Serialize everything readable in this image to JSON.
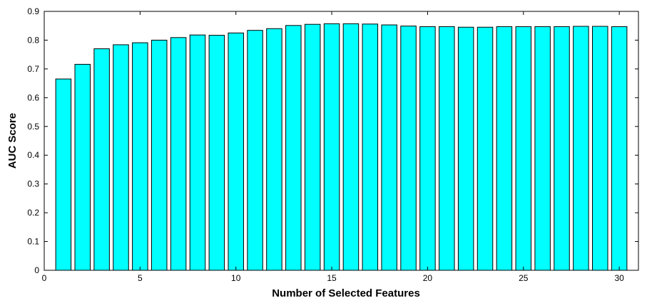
{
  "chart_data": {
    "type": "bar",
    "title": "",
    "xlabel": "Number of Selected Features",
    "ylabel": "AUC Score",
    "xlim": [
      0,
      31
    ],
    "ylim": [
      0,
      0.9
    ],
    "xticks": [
      0,
      5,
      10,
      15,
      20,
      25,
      30
    ],
    "yticks": [
      0,
      0.1,
      0.2,
      0.3,
      0.4,
      0.5,
      0.6,
      0.7,
      0.8,
      0.9
    ],
    "grid": false,
    "bar_color": "#00ffff",
    "edge_color": "#000000",
    "x": [
      1,
      2,
      3,
      4,
      5,
      6,
      7,
      8,
      9,
      10,
      11,
      12,
      13,
      14,
      15,
      16,
      17,
      18,
      19,
      20,
      21,
      22,
      23,
      24,
      25,
      26,
      27,
      28,
      29,
      30
    ],
    "values": [
      0.665,
      0.716,
      0.77,
      0.784,
      0.791,
      0.8,
      0.809,
      0.818,
      0.817,
      0.825,
      0.834,
      0.84,
      0.851,
      0.855,
      0.857,
      0.857,
      0.856,
      0.853,
      0.849,
      0.847,
      0.847,
      0.845,
      0.845,
      0.847,
      0.847,
      0.847,
      0.847,
      0.848,
      0.848,
      0.847
    ]
  }
}
